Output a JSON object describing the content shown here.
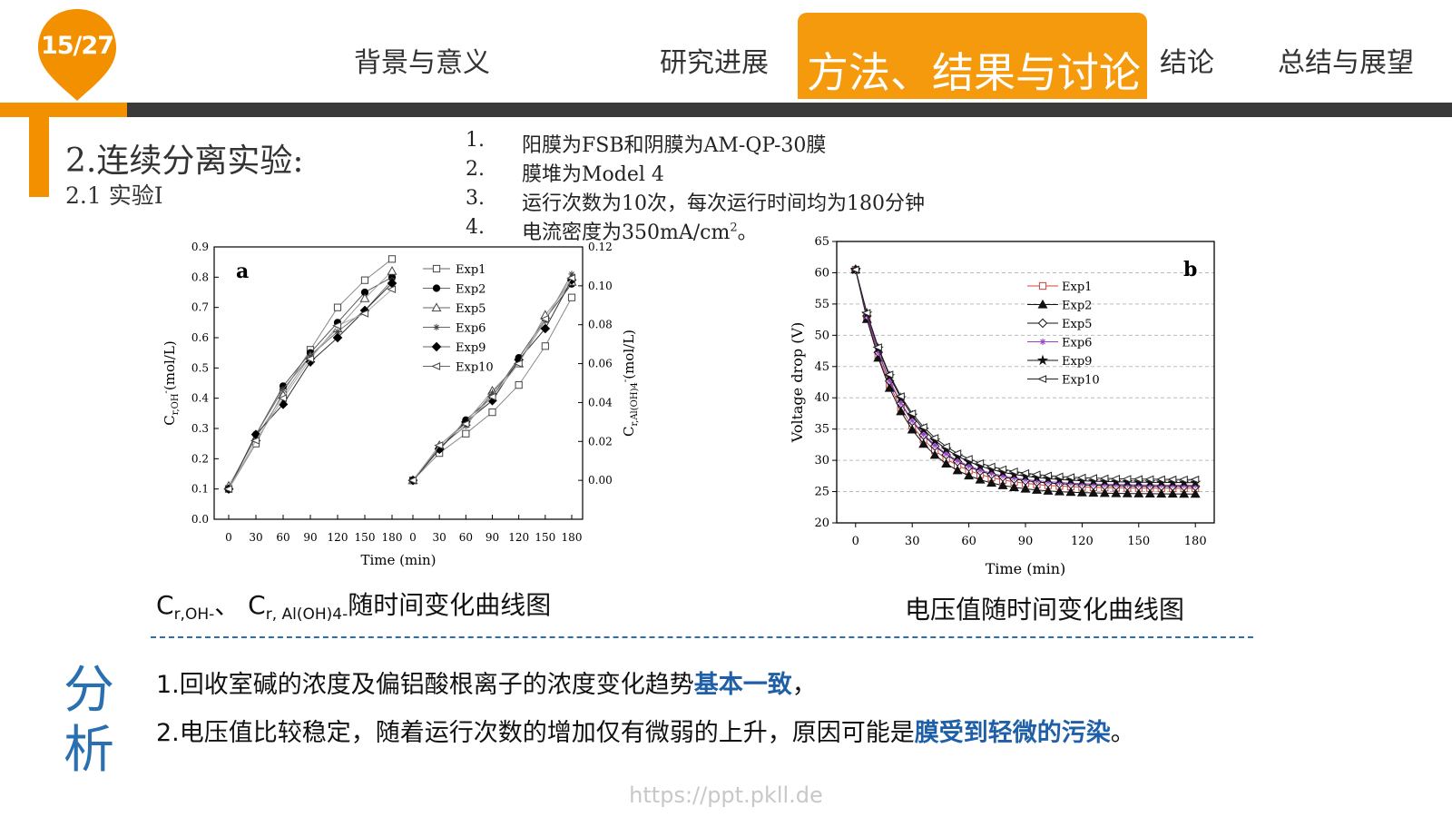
{
  "header": {
    "page_counter": "15/27",
    "nav": [
      {
        "label": "背景与意义",
        "active": false
      },
      {
        "label": "研究进展",
        "active": false
      },
      {
        "label": "方法、结果与讨论",
        "active": true
      },
      {
        "label": "结论",
        "active": false
      },
      {
        "label": "总结与展望",
        "active": false
      }
    ]
  },
  "colors": {
    "accent": "#f39000",
    "dark_bar": "#3a3a3a",
    "highlight": "#1f5fa8"
  },
  "section": {
    "title": "2.连续分离实验:",
    "subtitle": "2.1 实验I"
  },
  "conditions": [
    {
      "num": "1.",
      "text": "阳膜为FSB和阴膜为AM-QP-30膜"
    },
    {
      "num": "2.",
      "text": "膜堆为Model 4"
    },
    {
      "num": "3.",
      "text": "运行次数为10次，每次运行时间均为180分钟"
    },
    {
      "num": "4.",
      "text": "电流密度为350mA/cm",
      "sup": "2",
      "tail": "。"
    }
  ],
  "chart_data": [
    {
      "type": "line",
      "panel_label": "a",
      "xlabel": "Time (min)",
      "ylabel_left": "C",
      "ylabel_left_sub": "r,OH",
      "ylabel_left_sup": "-",
      "ylabel_left_unit": "(mol/L)",
      "ylabel_right": "C",
      "ylabel_right_sub": "r,Al(OH)4",
      "ylabel_right_sup": "-",
      "ylabel_right_unit": "(mol/L)",
      "ylim_left": [
        0,
        0.9
      ],
      "ylim_right": [
        -0.02,
        0.12
      ],
      "x_ticks": [
        "0",
        "30",
        "60",
        "90",
        "120",
        "150",
        "180"
      ],
      "y_ticks_left": [
        "0.0",
        "0.1",
        "0.2",
        "0.3",
        "0.4",
        "0.5",
        "0.6",
        "0.7",
        "0.8",
        "0.9"
      ],
      "y_ticks_right": [
        "0.00",
        "0.02",
        "0.04",
        "0.06",
        "0.08",
        "0.10",
        "0.12"
      ],
      "x": [
        0,
        30,
        60,
        90,
        120,
        150,
        180
      ],
      "series": [
        {
          "name": "Exp1",
          "marker": "square-open",
          "left": [
            0.1,
            0.25,
            0.42,
            0.56,
            0.7,
            0.79,
            0.86
          ],
          "right": [
            0.0,
            0.014,
            0.024,
            0.035,
            0.049,
            0.069,
            0.094
          ]
        },
        {
          "name": "Exp2",
          "marker": "circle-filled",
          "left": [
            0.1,
            0.28,
            0.44,
            0.55,
            0.65,
            0.75,
            0.8
          ],
          "right": [
            0.0,
            0.016,
            0.031,
            0.043,
            0.063,
            0.083,
            0.101
          ]
        },
        {
          "name": "Exp5",
          "marker": "triangle-open",
          "left": [
            0.11,
            0.27,
            0.41,
            0.54,
            0.63,
            0.73,
            0.82
          ],
          "right": [
            0.0,
            0.018,
            0.03,
            0.046,
            0.06,
            0.085,
            0.102
          ]
        },
        {
          "name": "Exp6",
          "marker": "star",
          "left": [
            0.1,
            0.28,
            0.43,
            0.54,
            0.62,
            0.69,
            0.79
          ],
          "right": [
            0.0,
            0.017,
            0.028,
            0.045,
            0.061,
            0.082,
            0.106
          ]
        },
        {
          "name": "Exp9",
          "marker": "diamond-filled",
          "left": [
            0.1,
            0.28,
            0.38,
            0.52,
            0.6,
            0.69,
            0.78
          ],
          "right": [
            0.0,
            0.016,
            0.03,
            0.041,
            0.062,
            0.078,
            0.103
          ]
        },
        {
          "name": "Exp10",
          "marker": "triangle-left-open",
          "left": [
            0.1,
            0.26,
            0.4,
            0.53,
            0.64,
            0.68,
            0.76
          ],
          "right": [
            0.0,
            0.018,
            0.029,
            0.043,
            0.06,
            0.083,
            0.104
          ]
        }
      ],
      "legend_position": "top"
    },
    {
      "type": "line",
      "panel_label": "b",
      "xlabel": "Time (min)",
      "ylabel": "Voltage drop (V)",
      "xlim": [
        -10,
        190
      ],
      "ylim": [
        20,
        65
      ],
      "x_ticks": [
        0,
        30,
        60,
        90,
        120,
        150,
        180
      ],
      "y_ticks": [
        20,
        25,
        30,
        35,
        40,
        45,
        50,
        55,
        60,
        65
      ],
      "grid": "horizontal dashed",
      "legend_position": "top-center",
      "series": [
        {
          "name": "Exp1",
          "marker": "square-open",
          "color": "#d04040",
          "v0": 60.5,
          "vinf": 25.5,
          "tau": 24
        },
        {
          "name": "Exp2",
          "marker": "triangle-filled",
          "color": "#111111",
          "v0": 60.5,
          "vinf": 24.6,
          "tau": 24
        },
        {
          "name": "Exp5",
          "marker": "diamond-open",
          "color": "#111111",
          "v0": 60.5,
          "vinf": 25.8,
          "tau": 25
        },
        {
          "name": "Exp6",
          "marker": "star",
          "color": "#9a40c8",
          "v0": 60.5,
          "vinf": 26.0,
          "tau": 25
        },
        {
          "name": "Exp9",
          "marker": "star-filled",
          "color": "#111111",
          "v0": 60.5,
          "vinf": 26.4,
          "tau": 26
        },
        {
          "name": "Exp10",
          "marker": "triangle-left-open",
          "color": "#222222",
          "v0": 60.5,
          "vinf": 26.9,
          "tau": 26
        }
      ]
    }
  ],
  "captions": {
    "left_main": "C",
    "left_sub1": "r,OH-",
    "left_sep": "、 C",
    "left_sub2": "r, Al(OH)4-",
    "left_tail": "随时间变化曲线图",
    "right": "电压值随时间变化曲线图"
  },
  "analysis": {
    "label": "分析",
    "line1_a": "1.回收室碱的浓度及偏铝酸根离子的浓度变化趋势",
    "line1_hl": "基本一致",
    "line1_b": "，",
    "line2_a": "2.电压值比较稳定，随着运行次数的增加仅有微弱的上升，原因可能是",
    "line2_hl": "膜受到轻微的污染",
    "line2_b": "。"
  },
  "watermark": "https://ppt.pkll.de"
}
